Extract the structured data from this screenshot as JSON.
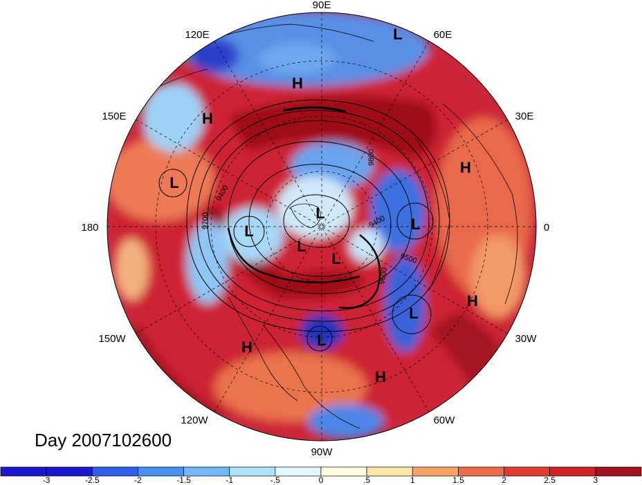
{
  "map": {
    "date_label": "Day 2007102600",
    "longitude_labels": [
      "90E",
      "120E",
      "60E",
      "150E",
      "30E",
      "180",
      "0",
      "150W",
      "30W",
      "120W",
      "60W",
      "90W"
    ],
    "pressure_centers": [
      "L",
      "H",
      "H",
      "L",
      "H",
      "L",
      "L",
      "L",
      "L",
      "L",
      "L",
      "H",
      "L",
      "H",
      "H"
    ],
    "contour_labels": [
      "9400",
      "9400",
      "9500",
      "9600",
      "9700",
      "9800"
    ]
  },
  "colorbar": {
    "colors": [
      "#1a1acc",
      "#2f5fe6",
      "#4a90ee",
      "#76b8f2",
      "#aee4fa",
      "#dff6fd",
      "#fffbe0",
      "#fde6a8",
      "#f5a26a",
      "#eb6a4a",
      "#e03c32",
      "#cf2128",
      "#a0131c"
    ],
    "tick_labels": [
      "-3",
      "-2.5",
      "-2",
      "-1.5",
      "-1",
      "-.5",
      "0",
      ".5",
      "1",
      "1.5",
      "2",
      "2.5",
      "3"
    ]
  }
}
